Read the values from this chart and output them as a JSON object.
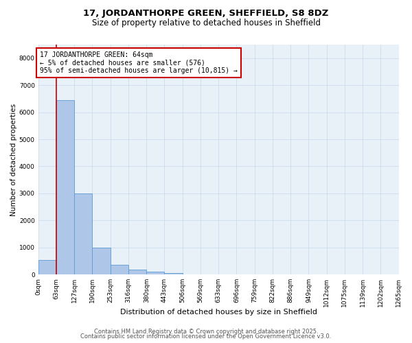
{
  "title1": "17, JORDANTHORPE GREEN, SHEFFIELD, S8 8DZ",
  "title2": "Size of property relative to detached houses in Sheffield",
  "xlabel": "Distribution of detached houses by size in Sheffield",
  "ylabel": "Number of detached properties",
  "bin_edges": [
    0,
    63,
    127,
    190,
    253,
    316,
    380,
    443,
    506,
    569,
    633,
    696,
    759,
    822,
    886,
    949,
    1012,
    1075,
    1139,
    1202,
    1265
  ],
  "bar_heights": [
    550,
    6450,
    3000,
    1000,
    370,
    175,
    100,
    60,
    15,
    5,
    3,
    2,
    1,
    1,
    1,
    1,
    0,
    0,
    0,
    0
  ],
  "bar_color": "#aec6e8",
  "bar_edge_color": "#5b9bd5",
  "property_size": 64,
  "red_line_color": "#cc0000",
  "annotation_line1": "17 JORDANTHORPE GREEN: 64sqm",
  "annotation_line2": "← 5% of detached houses are smaller (576)",
  "annotation_line3": "95% of semi-detached houses are larger (10,815) →",
  "annotation_box_color": "#cc0000",
  "ylim": [
    0,
    8500
  ],
  "yticks": [
    0,
    1000,
    2000,
    3000,
    4000,
    5000,
    6000,
    7000,
    8000
  ],
  "grid_color": "#ccdcee",
  "bg_color": "#e8f0f8",
  "footer1": "Contains HM Land Registry data © Crown copyright and database right 2025.",
  "footer2": "Contains public sector information licensed under the Open Government Licence v3.0.",
  "title1_fontsize": 9.5,
  "title2_fontsize": 8.5,
  "xlabel_fontsize": 8,
  "ylabel_fontsize": 7.5,
  "tick_fontsize": 6.5,
  "footer_fontsize": 6,
  "annotation_fontsize": 7
}
